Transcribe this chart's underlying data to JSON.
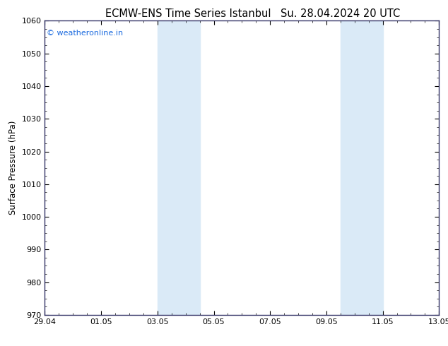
{
  "title_left": "ECMW-ENS Time Series Istanbul",
  "title_right": "Su. 28.04.2024 20 UTC",
  "ylabel": "Surface Pressure (hPa)",
  "ylim": [
    970,
    1060
  ],
  "yticks": [
    970,
    980,
    990,
    1000,
    1010,
    1020,
    1030,
    1040,
    1050,
    1060
  ],
  "xlim_start": 0,
  "xlim_end": 14,
  "xtick_labels": [
    "29.04",
    "01.05",
    "03.05",
    "05.05",
    "07.05",
    "09.05",
    "11.05",
    "13.05"
  ],
  "xtick_positions": [
    0,
    2,
    4,
    6,
    8,
    10,
    12,
    14
  ],
  "shaded_bands": [
    {
      "xmin": 4.0,
      "xmax": 5.5
    },
    {
      "xmin": 10.5,
      "xmax": 12.0
    }
  ],
  "shaded_color": "#daeaf7",
  "bg_color": "#ffffff",
  "plot_bg_color": "#ffffff",
  "watermark_text": "© weatheronline.in",
  "watermark_color": "#1a6adf",
  "title_fontsize": 10.5,
  "label_fontsize": 8.5,
  "tick_fontsize": 8.0
}
